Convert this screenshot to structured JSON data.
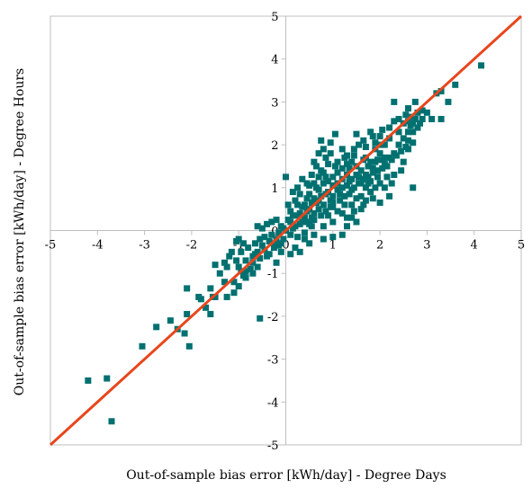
{
  "chart_data": {
    "type": "scatter",
    "title": "",
    "xlabel": "Out-of-sample bias error [kWh/day] - Degree Days",
    "ylabel": "Out-of-sample bias error [kWh/day] - Degree Hours",
    "xlim": [
      -5,
      5
    ],
    "ylim": [
      -5,
      5
    ],
    "x_ticks": [
      "-5",
      "-4",
      "-3",
      "-2",
      "-1",
      "0",
      "1",
      "2",
      "3",
      "4",
      "5"
    ],
    "y_ticks": [
      "-5",
      "-4",
      "-3",
      "-2",
      "-1",
      "0",
      "1",
      "2",
      "3",
      "4",
      "5"
    ],
    "grid": false,
    "reference_line": {
      "x": [
        -5,
        5
      ],
      "y": [
        -5,
        5
      ],
      "color": "#e8461c"
    },
    "marker_color": "#007070",
    "series": [
      {
        "points": [
          [
            -4.2,
            -3.5
          ],
          [
            -3.8,
            -3.45
          ],
          [
            -3.7,
            -4.45
          ],
          [
            -3.05,
            -2.7
          ],
          [
            -2.75,
            -2.25
          ],
          [
            -2.45,
            -2.1
          ],
          [
            -2.3,
            -2.3
          ],
          [
            -2.15,
            -2.4
          ],
          [
            -2.05,
            -2.7
          ],
          [
            -2.1,
            -1.95
          ],
          [
            -2.1,
            -1.35
          ],
          [
            -1.8,
            -1.6
          ],
          [
            -1.6,
            -1.35
          ],
          [
            -1.5,
            -1.55
          ],
          [
            -1.7,
            -1.8
          ],
          [
            -1.6,
            -1.95
          ],
          [
            -1.55,
            -1.55
          ],
          [
            -1.85,
            -1.55
          ],
          [
            -1.5,
            -0.8
          ],
          [
            -1.4,
            -1.0
          ],
          [
            -1.3,
            -1.2
          ],
          [
            -1.1,
            -1.2
          ],
          [
            -1.0,
            -1.3
          ],
          [
            -0.9,
            -1.05
          ],
          [
            -0.85,
            -1.1
          ],
          [
            -0.75,
            -0.9
          ],
          [
            -0.55,
            -2.05
          ],
          [
            -1.3,
            -0.75
          ],
          [
            -1.2,
            -0.6
          ],
          [
            -1.15,
            -0.5
          ],
          [
            -1.05,
            -0.7
          ],
          [
            -0.95,
            -0.5
          ],
          [
            -0.85,
            -0.7
          ],
          [
            -0.8,
            -0.4
          ],
          [
            -0.7,
            -0.6
          ],
          [
            -0.65,
            -0.3
          ],
          [
            -0.6,
            -0.5
          ],
          [
            -0.55,
            -0.2
          ],
          [
            -0.5,
            -0.35
          ],
          [
            -0.45,
            -0.45
          ],
          [
            -0.4,
            -0.6
          ],
          [
            -0.35,
            -0.25
          ],
          [
            -0.3,
            -0.1
          ],
          [
            -0.25,
            -0.4
          ],
          [
            -0.2,
            -0.2
          ],
          [
            -0.15,
            -0.05
          ],
          [
            -0.1,
            -0.3
          ],
          [
            -0.05,
            0.05
          ],
          [
            -1.0,
            -0.2
          ],
          [
            -0.9,
            -0.3
          ],
          [
            -0.6,
            0.1
          ],
          [
            -0.5,
            0.05
          ],
          [
            -0.4,
            0.15
          ],
          [
            -0.3,
            0.2
          ],
          [
            -0.2,
            0.25
          ],
          [
            -0.1,
            0.1
          ],
          [
            -1.05,
            -0.25
          ],
          [
            -1.25,
            -0.85
          ],
          [
            -1.0,
            -0.85
          ],
          [
            -0.95,
            -0.95
          ],
          [
            -0.7,
            -0.75
          ],
          [
            -0.65,
            -0.55
          ],
          [
            -0.55,
            -0.65
          ],
          [
            -0.45,
            -0.15
          ],
          [
            -0.35,
            -0.55
          ],
          [
            -0.25,
            -0.3
          ],
          [
            -0.15,
            -0.35
          ],
          [
            -0.05,
            -0.2
          ],
          [
            -0.1,
            -0.5
          ],
          [
            -0.2,
            -0.75
          ],
          [
            -1.1,
            -1.45
          ],
          [
            -1.25,
            -1.55
          ],
          [
            -0.85,
            -0.95
          ],
          [
            -0.7,
            -1.0
          ],
          [
            -0.6,
            -0.85
          ],
          [
            0.0,
            0.0
          ],
          [
            0.1,
            0.2
          ],
          [
            0.2,
            0.1
          ],
          [
            0.3,
            0.4
          ],
          [
            0.4,
            0.3
          ],
          [
            0.5,
            0.5
          ],
          [
            0.6,
            0.4
          ],
          [
            0.7,
            0.7
          ],
          [
            0.8,
            0.6
          ],
          [
            0.9,
            0.9
          ],
          [
            1.0,
            0.8
          ],
          [
            1.1,
            1.1
          ],
          [
            1.2,
            1.0
          ],
          [
            1.3,
            1.3
          ],
          [
            1.4,
            1.2
          ],
          [
            1.5,
            1.5
          ],
          [
            1.6,
            1.4
          ],
          [
            1.7,
            1.7
          ],
          [
            1.8,
            1.6
          ],
          [
            1.9,
            1.9
          ],
          [
            2.0,
            1.8
          ],
          [
            0.1,
            -0.1
          ],
          [
            0.15,
            0.35
          ],
          [
            0.25,
            0.6
          ],
          [
            0.35,
            0.2
          ],
          [
            0.45,
            0.75
          ],
          [
            0.55,
            0.3
          ],
          [
            0.65,
            1.0
          ],
          [
            0.75,
            0.35
          ],
          [
            0.85,
            1.25
          ],
          [
            0.95,
            0.55
          ],
          [
            1.05,
            1.5
          ],
          [
            1.15,
            0.7
          ],
          [
            1.25,
            1.7
          ],
          [
            1.35,
            0.85
          ],
          [
            1.45,
            1.9
          ],
          [
            1.55,
            1.1
          ],
          [
            1.65,
            2.1
          ],
          [
            1.75,
            1.25
          ],
          [
            1.85,
            2.2
          ],
          [
            1.95,
            1.4
          ],
          [
            0.05,
            0.6
          ],
          [
            0.15,
            0.9
          ],
          [
            0.25,
            1.0
          ],
          [
            0.35,
            1.2
          ],
          [
            0.45,
            1.1
          ],
          [
            0.55,
            1.3
          ],
          [
            0.65,
            1.5
          ],
          [
            0.75,
            1.4
          ],
          [
            0.85,
            1.7
          ],
          [
            0.95,
            1.8
          ],
          [
            0.2,
            -0.4
          ],
          [
            0.4,
            -0.2
          ],
          [
            0.6,
            -0.1
          ],
          [
            0.8,
            0.1
          ],
          [
            1.0,
            0.2
          ],
          [
            1.2,
            0.4
          ],
          [
            1.4,
            0.6
          ],
          [
            1.6,
            0.8
          ],
          [
            1.8,
            0.9
          ],
          [
            2.0,
            1.1
          ],
          [
            0.0,
            1.25
          ],
          [
            0.6,
            1.6
          ],
          [
            0.8,
            1.9
          ],
          [
            0.95,
            2.05
          ],
          [
            1.05,
            2.25
          ],
          [
            0.75,
            2.1
          ],
          [
            0.7,
            1.8
          ],
          [
            0.9,
            1.55
          ],
          [
            1.2,
            1.9
          ],
          [
            1.3,
            1.55
          ],
          [
            1.1,
            1.35
          ],
          [
            1.45,
            1.75
          ],
          [
            1.55,
            2.0
          ],
          [
            1.65,
            1.65
          ],
          [
            1.7,
            1.95
          ],
          [
            1.8,
            2.3
          ],
          [
            1.9,
            2.05
          ],
          [
            2.0,
            2.2
          ],
          [
            2.05,
            2.35
          ],
          [
            1.5,
            2.25
          ],
          [
            0.3,
            0.85
          ],
          [
            0.5,
            1.05
          ],
          [
            0.6,
            0.75
          ],
          [
            0.7,
            0.95
          ],
          [
            0.8,
            1.1
          ],
          [
            0.85,
            0.85
          ],
          [
            1.0,
            1.05
          ],
          [
            1.1,
            0.95
          ],
          [
            1.2,
            1.2
          ],
          [
            1.3,
            1.05
          ],
          [
            1.35,
            1.45
          ],
          [
            1.4,
            0.95
          ],
          [
            1.5,
            1.3
          ],
          [
            1.6,
            1.1
          ],
          [
            1.7,
            1.3
          ],
          [
            1.75,
            1.5
          ],
          [
            1.85,
            1.35
          ],
          [
            1.9,
            1.6
          ],
          [
            0.4,
            0.6
          ],
          [
            0.55,
            0.65
          ],
          [
            0.1,
            0.45
          ],
          [
            0.2,
            0.7
          ],
          [
            0.3,
            0.15
          ],
          [
            0.4,
            -0.05
          ],
          [
            0.5,
            0.15
          ],
          [
            0.6,
            0.25
          ],
          [
            0.7,
            0.5
          ],
          [
            0.9,
            0.35
          ],
          [
            1.0,
            0.55
          ],
          [
            1.1,
            0.45
          ],
          [
            1.25,
            0.6
          ],
          [
            1.3,
            0.3
          ],
          [
            1.45,
            0.45
          ],
          [
            1.5,
            0.75
          ],
          [
            1.65,
            0.6
          ],
          [
            1.7,
            1.0
          ],
          [
            1.85,
            0.75
          ],
          [
            2.0,
            0.65
          ],
          [
            2.1,
            1.0
          ],
          [
            2.2,
            0.8
          ],
          [
            2.1,
            1.55
          ],
          [
            2.2,
            1.7
          ],
          [
            2.3,
            1.8
          ],
          [
            2.4,
            2.0
          ],
          [
            2.5,
            2.15
          ],
          [
            2.6,
            2.3
          ],
          [
            2.7,
            2.5
          ],
          [
            2.8,
            2.4
          ],
          [
            2.9,
            2.6
          ],
          [
            3.0,
            2.75
          ],
          [
            2.2,
            2.4
          ],
          [
            2.3,
            2.55
          ],
          [
            2.4,
            2.6
          ],
          [
            2.5,
            2.5
          ],
          [
            2.6,
            2.55
          ],
          [
            2.7,
            2.3
          ],
          [
            2.3,
            1.3
          ],
          [
            2.5,
            1.6
          ],
          [
            2.6,
            1.9
          ],
          [
            2.7,
            2.05
          ],
          [
            2.3,
            3.0
          ],
          [
            2.6,
            2.85
          ],
          [
            2.75,
            3.0
          ],
          [
            2.9,
            2.8
          ],
          [
            3.1,
            2.6
          ],
          [
            3.2,
            3.2
          ],
          [
            3.3,
            3.25
          ],
          [
            3.45,
            3.0
          ],
          [
            3.6,
            3.4
          ],
          [
            3.3,
            2.6
          ],
          [
            2.1,
            2.0
          ],
          [
            2.2,
            2.15
          ],
          [
            2.4,
            2.3
          ],
          [
            2.55,
            2.7
          ],
          [
            2.65,
            2.65
          ],
          [
            2.8,
            2.75
          ],
          [
            2.45,
            1.4
          ],
          [
            2.7,
            1.0
          ],
          [
            2.25,
            1.1
          ],
          [
            2.15,
            1.25
          ],
          [
            4.15,
            3.85
          ],
          [
            2.1,
            1.7
          ],
          [
            2.0,
            2.0
          ],
          [
            1.95,
            1.65
          ],
          [
            2.05,
            1.45
          ],
          [
            1.8,
            1.15
          ],
          [
            1.9,
            1.0
          ],
          [
            1.7,
            0.7
          ],
          [
            1.6,
            0.5
          ],
          [
            1.4,
            0.3
          ],
          [
            1.5,
            0.2
          ],
          [
            1.3,
            0.1
          ],
          [
            1.2,
            -0.1
          ],
          [
            1.0,
            -0.15
          ],
          [
            0.8,
            -0.2
          ],
          [
            0.5,
            -0.3
          ],
          [
            0.3,
            -0.5
          ],
          [
            0.1,
            -0.55
          ],
          [
            0.25,
            -0.15
          ],
          [
            0.45,
            0.45
          ],
          [
            0.15,
            0.05
          ],
          [
            0.05,
            0.25
          ],
          [
            0.25,
            0.35
          ],
          [
            0.35,
            0.55
          ],
          [
            0.45,
            0.2
          ],
          [
            0.55,
            0.1
          ],
          [
            0.65,
            0.65
          ],
          [
            0.75,
            0.8
          ],
          [
            0.85,
            0.45
          ],
          [
            0.95,
            0.7
          ],
          [
            0.5,
            0.85
          ],
          [
            0.6,
            1.1
          ],
          [
            0.7,
            1.25
          ],
          [
            0.8,
            1.35
          ],
          [
            0.9,
            1.15
          ],
          [
            1.0,
            1.25
          ],
          [
            1.1,
            1.6
          ],
          [
            1.2,
            1.45
          ],
          [
            1.3,
            1.75
          ],
          [
            1.4,
            1.6
          ],
          [
            1.0,
            0.65
          ],
          [
            1.15,
            0.85
          ],
          [
            1.25,
            0.8
          ],
          [
            1.35,
            1.15
          ],
          [
            1.45,
            1.0
          ],
          [
            1.55,
            1.25
          ],
          [
            1.65,
            1.2
          ],
          [
            1.75,
            1.1
          ],
          [
            1.85,
            1.45
          ],
          [
            1.95,
            1.25
          ],
          [
            2.05,
            1.65
          ],
          [
            2.15,
            1.5
          ],
          [
            2.25,
            1.65
          ],
          [
            2.35,
            1.75
          ],
          [
            2.45,
            1.85
          ],
          [
            2.55,
            1.95
          ],
          [
            2.6,
            2.1
          ],
          [
            2.65,
            2.45
          ],
          [
            2.75,
            2.6
          ],
          [
            2.85,
            2.5
          ]
        ]
      }
    ]
  }
}
